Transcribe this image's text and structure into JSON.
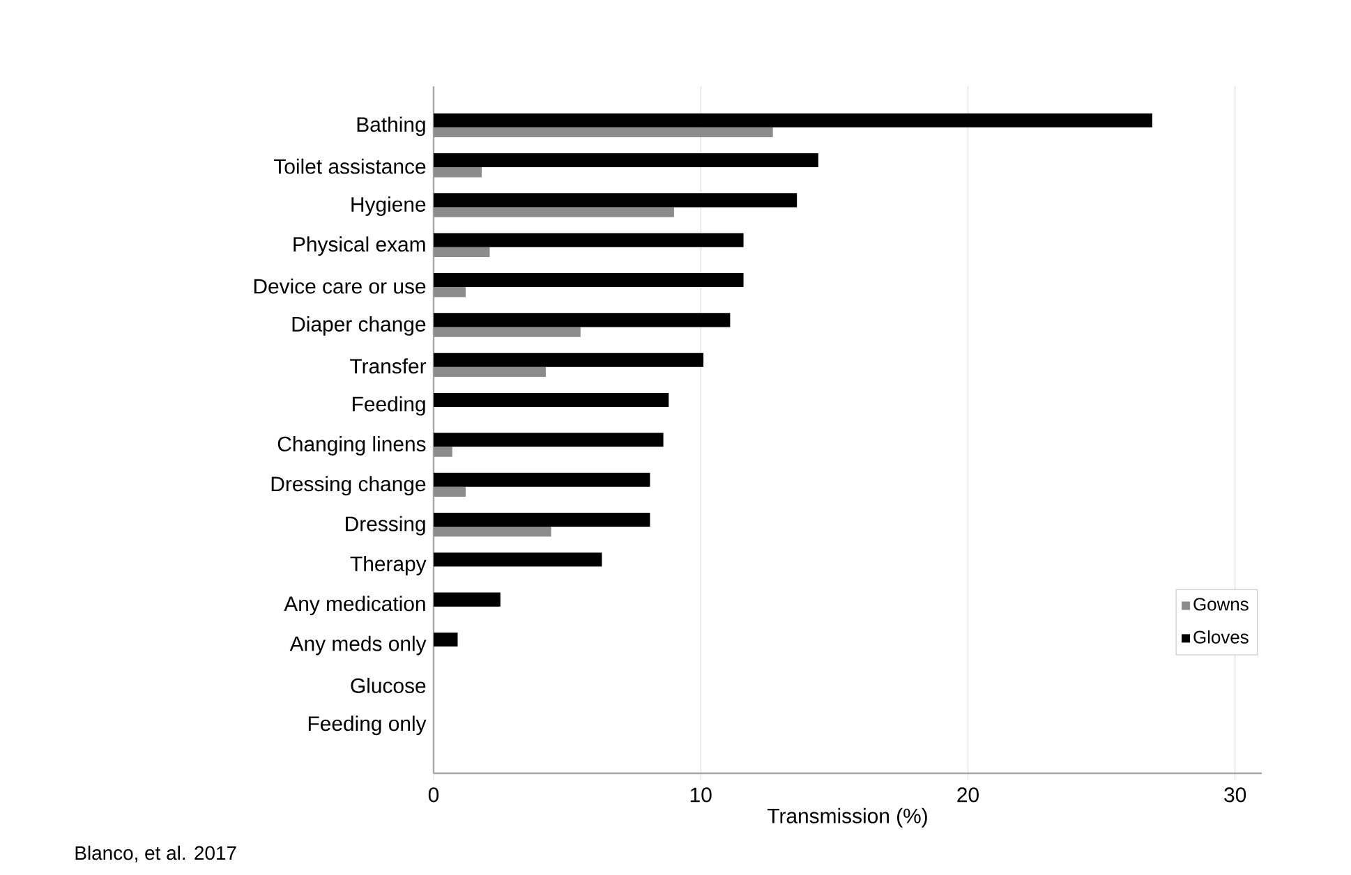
{
  "chart_data": {
    "type": "bar",
    "orientation": "horizontal",
    "xlabel": "Transmission (%)",
    "categories": [
      "Bathing",
      "Toilet assistance",
      "Hygiene",
      "Physical exam",
      "Device care or use",
      "Diaper change",
      "Transfer",
      "Feeding",
      "Changing linens",
      "Dressing change",
      "Dressing",
      "Therapy",
      "Any medication",
      "Any meds only",
      "Glucose",
      "Feeding only"
    ],
    "series": [
      {
        "name": "Gowns",
        "color": "#8c8c8c",
        "values": [
          12.7,
          1.8,
          9.0,
          2.1,
          1.2,
          5.5,
          4.2,
          0,
          0.7,
          1.2,
          4.4,
          0,
          0,
          0,
          0,
          0
        ]
      },
      {
        "name": "Gloves",
        "color": "#000000",
        "values": [
          26.9,
          14.4,
          13.6,
          11.6,
          11.6,
          11.1,
          10.1,
          8.8,
          8.6,
          8.1,
          8.1,
          6.3,
          2.5,
          0.9,
          0,
          0
        ]
      }
    ],
    "xlim": [
      0,
      31
    ],
    "xticks": [
      0,
      10,
      20,
      30
    ],
    "grid": "x",
    "legend": "right",
    "annotations": [
      "Blanco, et al. 2017"
    ]
  }
}
